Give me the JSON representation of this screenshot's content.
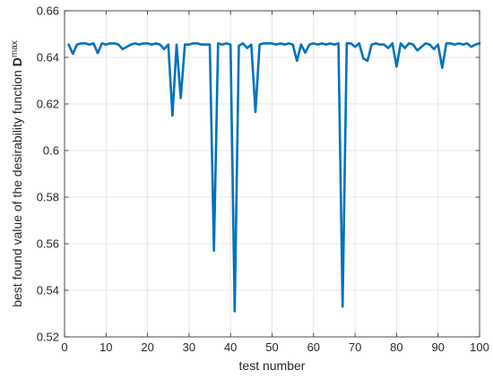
{
  "chart_data": {
    "type": "line",
    "title": "",
    "xlabel": "test number",
    "ylabel_main": "best found value of the desirability function ",
    "ylabel_symbol": "D",
    "ylabel_subscript": "max",
    "xlim": [
      0,
      100
    ],
    "ylim": [
      0.52,
      0.66
    ],
    "xticks": [
      "0",
      "10",
      "20",
      "30",
      "40",
      "50",
      "60",
      "70",
      "80",
      "90",
      "100"
    ],
    "yticks": [
      "0.52",
      "0.54",
      "0.56",
      "0.58",
      "0.6",
      "0.62",
      "0.64",
      "0.66"
    ],
    "grid": true,
    "line_color": "#0072BD",
    "x": [
      1,
      2,
      3,
      4,
      5,
      6,
      7,
      8,
      9,
      10,
      11,
      12,
      13,
      14,
      15,
      16,
      17,
      18,
      19,
      20,
      21,
      22,
      23,
      24,
      25,
      26,
      27,
      28,
      29,
      30,
      31,
      32,
      33,
      34,
      35,
      36,
      37,
      38,
      39,
      40,
      41,
      42,
      43,
      44,
      45,
      46,
      47,
      48,
      49,
      50,
      51,
      52,
      53,
      54,
      55,
      56,
      57,
      58,
      59,
      60,
      61,
      62,
      63,
      64,
      65,
      66,
      67,
      68,
      69,
      70,
      71,
      72,
      73,
      74,
      75,
      76,
      77,
      78,
      79,
      80,
      81,
      82,
      83,
      84,
      85,
      86,
      87,
      88,
      89,
      90,
      91,
      92,
      93,
      94,
      95,
      96,
      97,
      98,
      99,
      100
    ],
    "y": [
      0.6455,
      0.6415,
      0.6455,
      0.646,
      0.646,
      0.6455,
      0.646,
      0.6418,
      0.646,
      0.6455,
      0.646,
      0.646,
      0.6455,
      0.6435,
      0.6445,
      0.6455,
      0.646,
      0.6455,
      0.646,
      0.646,
      0.6455,
      0.646,
      0.6455,
      0.6435,
      0.6455,
      0.615,
      0.6455,
      0.6225,
      0.6455,
      0.6455,
      0.646,
      0.646,
      0.6455,
      0.6455,
      0.6455,
      0.557,
      0.646,
      0.6455,
      0.646,
      0.6455,
      0.531,
      0.645,
      0.646,
      0.644,
      0.6455,
      0.6165,
      0.6455,
      0.646,
      0.646,
      0.646,
      0.6455,
      0.646,
      0.6455,
      0.646,
      0.6455,
      0.6385,
      0.6455,
      0.642,
      0.6455,
      0.646,
      0.6455,
      0.646,
      0.6455,
      0.646,
      0.6455,
      0.646,
      0.533,
      0.646,
      0.646,
      0.6445,
      0.646,
      0.6395,
      0.6385,
      0.6455,
      0.646,
      0.6455,
      0.6455,
      0.644,
      0.646,
      0.636,
      0.646,
      0.644,
      0.646,
      0.6455,
      0.643,
      0.6445,
      0.646,
      0.6455,
      0.6435,
      0.6455,
      0.6355,
      0.646,
      0.646,
      0.6455,
      0.646,
      0.6455,
      0.646,
      0.6445,
      0.6455,
      0.646
    ]
  }
}
